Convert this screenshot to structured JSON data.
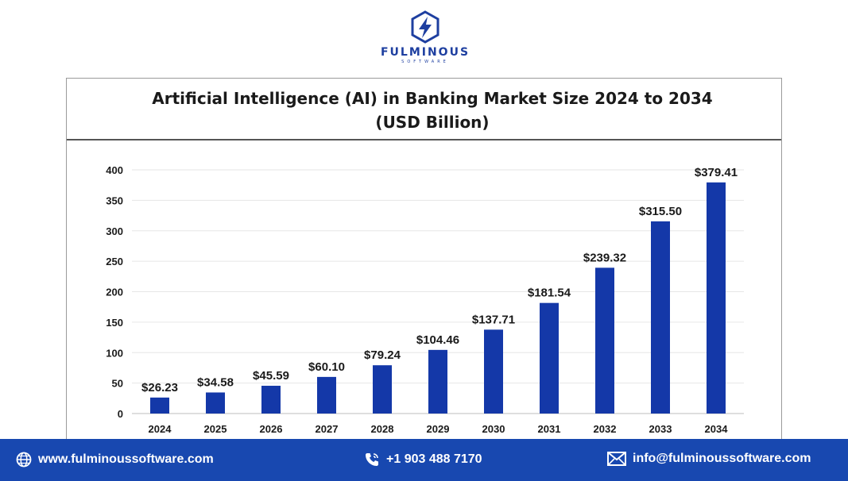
{
  "brand": {
    "name": "FULMINOUS",
    "tagline": "SOFTWARE"
  },
  "chart_data": {
    "type": "bar",
    "title_line1": "Artificial Intelligence (AI) in Banking Market Size 2024 to 2034",
    "title_line2": "(USD Billion)",
    "categories": [
      "2024",
      "2025",
      "2026",
      "2027",
      "2028",
      "2029",
      "2030",
      "2031",
      "2032",
      "2033",
      "2034"
    ],
    "values": [
      26.23,
      34.58,
      45.59,
      60.1,
      79.24,
      104.46,
      137.71,
      181.54,
      239.32,
      315.5,
      379.41
    ],
    "data_labels": [
      "$26.23",
      "$34.58",
      "$45.59",
      "$60.10",
      "$79.24",
      "$104.46",
      "$137.71",
      "$181.54",
      "$239.32",
      "$315.50",
      "$379.41"
    ],
    "yticks": [
      0,
      50,
      100,
      150,
      200,
      250,
      300,
      350,
      400
    ],
    "ylim": [
      0,
      400
    ],
    "xlabel": "",
    "ylabel": "",
    "grid": true,
    "legend": "none",
    "bar_color": "#1438a8"
  },
  "footer": {
    "website": "www.fulminoussoftware.com",
    "phone": "+1 903 488 7170",
    "email": "info@fulminoussoftware.com",
    "background_color": "#1848b0"
  },
  "icons": [
    "brand-logo-icon",
    "globe-icon",
    "phone-icon",
    "mail-icon"
  ]
}
